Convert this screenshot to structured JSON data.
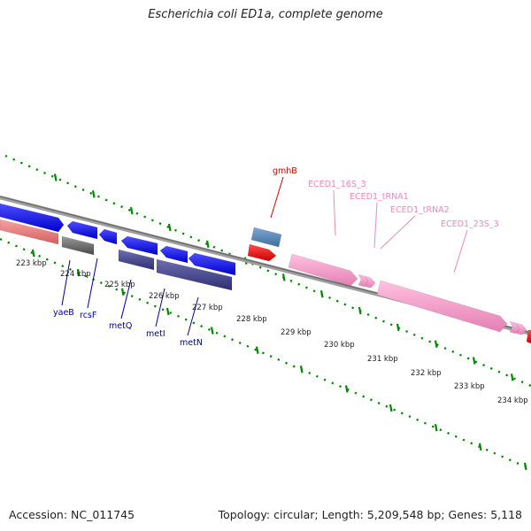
{
  "title": "Escherichia coli ED1a, complete genome",
  "accession": "Accession: NC_011745",
  "topology": "Topology: circular; Length: 5,209,548 bp; Genes: 5,118",
  "colors": {
    "backbone": "#808080",
    "dots": "#008800",
    "label_blue": "#000099",
    "label_red": "#cc0000",
    "label_pink": "#ee88bb"
  },
  "ticks": [
    {
      "label": "223 kbp"
    },
    {
      "label": "224 kbp"
    },
    {
      "label": "225 kbp"
    },
    {
      "label": "226 kbp"
    },
    {
      "label": "227 kbp"
    },
    {
      "label": "228 kbp"
    },
    {
      "label": "229 kbp"
    },
    {
      "label": "230 kbp"
    },
    {
      "label": "231 kbp"
    },
    {
      "label": "232 kbp"
    },
    {
      "label": "233 kbp"
    },
    {
      "label": "234 kbp"
    }
  ],
  "gene_labels": [
    {
      "name": "yaeB",
      "color": "#000099"
    },
    {
      "name": "rcsF",
      "color": "#000099"
    },
    {
      "name": "metQ",
      "color": "#000099"
    },
    {
      "name": "metI",
      "color": "#000099"
    },
    {
      "name": "metN",
      "color": "#000099"
    },
    {
      "name": "gmhB",
      "color": "#cc0000"
    },
    {
      "name": "ECED1_16S_3",
      "color": "#ee88bb"
    },
    {
      "name": "ECED1_tRNA1",
      "color": "#ee88bb"
    },
    {
      "name": "ECED1_tRNA2",
      "color": "#ee88bb"
    },
    {
      "name": "ECED1_23S_3",
      "color": "#ee88bb"
    }
  ]
}
